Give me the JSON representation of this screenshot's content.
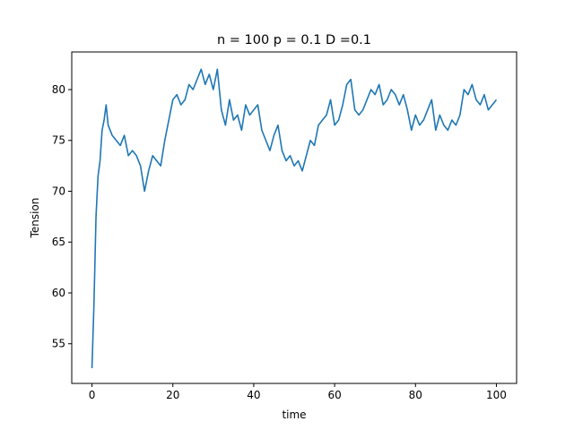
{
  "chart_data": {
    "type": "line",
    "title": "n = 100 p = 0.1 D =0.1",
    "xlabel": "time",
    "ylabel": "Tension",
    "xlim": [
      -5,
      105
    ],
    "ylim": [
      51.1,
      83.7
    ],
    "xticks": [
      0,
      20,
      40,
      60,
      80,
      100
    ],
    "yticks": [
      55,
      60,
      65,
      70,
      75,
      80
    ],
    "grid": false,
    "color": "#1f77b4",
    "series": [
      {
        "x": [
          0,
          0.5,
          1,
          1.5,
          2,
          2.5,
          3,
          3.5,
          4,
          5,
          6,
          7,
          8,
          9,
          10,
          11,
          12,
          13,
          14,
          15,
          16,
          17,
          18,
          19,
          20,
          21,
          22,
          23,
          24,
          25,
          26,
          27,
          28,
          29,
          30,
          31,
          32,
          33,
          34,
          35,
          36,
          37,
          38,
          39,
          40,
          41,
          42,
          43,
          44,
          45,
          46,
          47,
          48,
          49,
          50,
          51,
          52,
          53,
          54,
          55,
          56,
          57,
          58,
          59,
          60,
          61,
          62,
          63,
          64,
          65,
          66,
          67,
          68,
          69,
          70,
          71,
          72,
          73,
          74,
          75,
          76,
          77,
          78,
          79,
          80,
          81,
          82,
          83,
          84,
          85,
          86,
          87,
          88,
          89,
          90,
          91,
          92,
          93,
          94,
          95,
          96,
          97,
          98,
          99,
          100
        ],
        "values": [
          52.6,
          59.0,
          67.5,
          71.5,
          73.0,
          76.0,
          77.0,
          78.5,
          76.5,
          75.5,
          75.0,
          74.5,
          75.5,
          73.5,
          74.0,
          73.5,
          72.5,
          70.0,
          72.0,
          73.5,
          73.0,
          72.5,
          75.0,
          77.0,
          79.0,
          79.5,
          78.5,
          79.0,
          80.5,
          80.0,
          81.0,
          82.0,
          80.5,
          81.5,
          80.0,
          82.0,
          78.0,
          76.5,
          79.0,
          77.0,
          77.5,
          76.0,
          78.5,
          77.5,
          78.0,
          78.5,
          76.0,
          75.0,
          74.0,
          75.5,
          76.5,
          74.0,
          73.0,
          73.5,
          72.5,
          73.0,
          72.0,
          73.5,
          75.0,
          74.5,
          76.5,
          77.0,
          77.5,
          79.0,
          76.5,
          77.0,
          78.5,
          80.5,
          81.0,
          78.0,
          77.5,
          78.0,
          79.0,
          80.0,
          79.5,
          80.5,
          78.5,
          79.0,
          80.0,
          79.5,
          78.5,
          79.5,
          78.0,
          76.0,
          77.5,
          76.5,
          77.0,
          78.0,
          79.0,
          76.0,
          77.5,
          76.5,
          76.0,
          77.0,
          76.5,
          77.5,
          80.0,
          79.5,
          80.5,
          79.0,
          78.5,
          79.5,
          78.0,
          78.5,
          79.0
        ]
      }
    ]
  }
}
